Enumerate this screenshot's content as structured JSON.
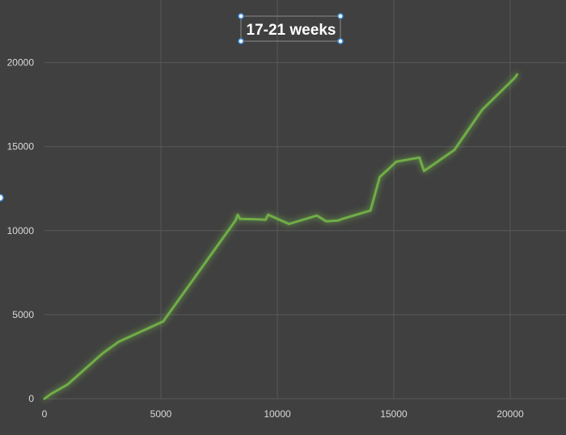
{
  "chart_data": {
    "type": "line",
    "title": "17-21 weeks",
    "xlabel": "",
    "ylabel": "",
    "xlim": [
      0,
      22500
    ],
    "ylim": [
      0,
      22500
    ],
    "x_ticks": [
      "0",
      "5000",
      "10000",
      "15000",
      "20000"
    ],
    "y_ticks": [
      "0",
      "5000",
      "10000",
      "15000",
      "20000"
    ],
    "grid": true,
    "legend": "none",
    "series": [
      {
        "color": "#70ad47",
        "points": [
          [
            0,
            0
          ],
          [
            300,
            300
          ],
          [
            1000,
            850
          ],
          [
            2500,
            2700
          ],
          [
            3200,
            3400
          ],
          [
            5100,
            4600
          ],
          [
            8200,
            10600
          ],
          [
            8300,
            10950
          ],
          [
            8400,
            10700
          ],
          [
            9000,
            10680
          ],
          [
            9500,
            10650
          ],
          [
            9600,
            10950
          ],
          [
            10500,
            10400
          ],
          [
            11700,
            10900
          ],
          [
            12100,
            10550
          ],
          [
            12600,
            10600
          ],
          [
            12800,
            10700
          ],
          [
            14000,
            11200
          ],
          [
            14400,
            13200
          ],
          [
            14800,
            13700
          ],
          [
            15100,
            14100
          ],
          [
            16100,
            14350
          ],
          [
            16300,
            13550
          ],
          [
            17600,
            14800
          ],
          [
            18800,
            17200
          ],
          [
            20200,
            19100
          ],
          [
            20300,
            19300
          ]
        ]
      }
    ]
  }
}
